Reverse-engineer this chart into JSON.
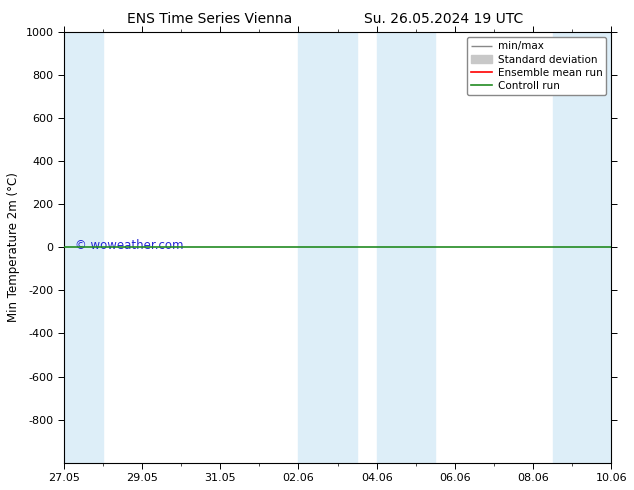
{
  "title": "ENS Time Series Vienna",
  "subtitle": "Su. 26.05.2024 19 UTC",
  "ylabel": "Min Temperature 2m (°C)",
  "ylim_top": -1000,
  "ylim_bottom": 1000,
  "yticks": [
    -800,
    -600,
    -400,
    -200,
    0,
    200,
    400,
    600,
    800,
    1000
  ],
  "xtick_labels": [
    "27.05",
    "29.05",
    "31.05",
    "02.06",
    "04.06",
    "06.06",
    "08.06",
    "10.06"
  ],
  "xtick_positions": [
    0,
    2,
    4,
    6,
    8,
    10,
    12,
    14
  ],
  "shaded_bands": [
    [
      0.0,
      1.0
    ],
    [
      6.0,
      7.5
    ],
    [
      8.0,
      9.5
    ],
    [
      12.5,
      14.0
    ]
  ],
  "shaded_color": "#ddeef8",
  "control_run_y": 0,
  "control_run_color": "#228b22",
  "ensemble_mean_color": "#ff0000",
  "std_dev_color": "#c8c8c8",
  "minmax_color": "#888888",
  "watermark": "© woweather.com",
  "watermark_color": "#0000cc",
  "background_color": "#ffffff",
  "legend_entries": [
    "min/max",
    "Standard deviation",
    "Ensemble mean run",
    "Controll run"
  ],
  "legend_line_colors": [
    "#888888",
    "#c8c8c8",
    "#ff0000",
    "#228b22"
  ],
  "total_days": 14
}
